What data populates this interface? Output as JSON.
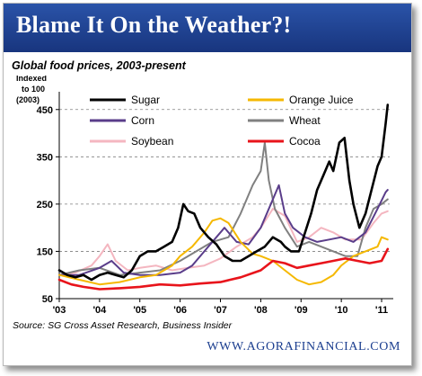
{
  "banner": {
    "title": "Blame It On the Weather?!"
  },
  "footer": {
    "source": "Source: SG Cross Asset Research, Business Insider",
    "site": "WWW.AGORAFINANCIAL.COM"
  },
  "colors": {
    "banner": "#1b3e8f",
    "site_text": "#1b3e8f"
  },
  "chart_data": {
    "type": "line",
    "title": "Global food prices, 2003-present",
    "ylabel": "Indexed to 100 (2003)",
    "ylabel_lines": [
      "Indexed",
      "to 100",
      "(2003)"
    ],
    "xlabel": "",
    "xlim": [
      2003.0,
      2011.2
    ],
    "ylim": [
      50,
      480
    ],
    "x_ticks": [
      2003,
      2004,
      2005,
      2006,
      2007,
      2008,
      2009,
      2010,
      2011
    ],
    "x_tick_labels": [
      "'03",
      "'04",
      "'05",
      "'06",
      "'07",
      "'08",
      "'09",
      "'10",
      "'11"
    ],
    "y_ticks": [
      50,
      150,
      250,
      350,
      450
    ],
    "y_gridlines": [
      150,
      250,
      350,
      450
    ],
    "grid": "dashed horizontal",
    "legend": "top, two columns",
    "series": [
      {
        "name": "Sugar",
        "color": "#000000",
        "width": 2.6,
        "x": [
          2003.0,
          2003.2,
          2003.4,
          2003.6,
          2003.8,
          2004.0,
          2004.2,
          2004.4,
          2004.6,
          2004.8,
          2005.0,
          2005.2,
          2005.4,
          2005.6,
          2005.8,
          2005.95,
          2006.08,
          2006.2,
          2006.35,
          2006.5,
          2006.7,
          2006.9,
          2007.1,
          2007.3,
          2007.5,
          2007.7,
          2007.9,
          2008.1,
          2008.3,
          2008.5,
          2008.6,
          2008.75,
          2008.95,
          2009.1,
          2009.25,
          2009.4,
          2009.55,
          2009.7,
          2009.8,
          2009.95,
          2010.08,
          2010.2,
          2010.3,
          2010.45,
          2010.6,
          2010.75,
          2010.9,
          2011.0,
          2011.1,
          2011.15
        ],
        "y": [
          110,
          100,
          95,
          100,
          90,
          100,
          105,
          100,
          95,
          110,
          140,
          150,
          150,
          160,
          170,
          200,
          250,
          235,
          230,
          200,
          180,
          165,
          140,
          130,
          130,
          140,
          150,
          160,
          180,
          170,
          160,
          150,
          150,
          190,
          230,
          280,
          310,
          340,
          320,
          380,
          390,
          300,
          250,
          200,
          230,
          280,
          330,
          350,
          420,
          460
        ]
      },
      {
        "name": "Orange Juice",
        "color": "#f5b800",
        "width": 2,
        "x": [
          2003.0,
          2003.5,
          2004.0,
          2004.5,
          2005.0,
          2005.4,
          2005.8,
          2006.0,
          2006.3,
          2006.6,
          2006.8,
          2007.0,
          2007.2,
          2007.5,
          2007.8,
          2008.0,
          2008.3,
          2008.6,
          2008.9,
          2009.2,
          2009.5,
          2009.8,
          2010.0,
          2010.3,
          2010.6,
          2010.9,
          2011.0,
          2011.15
        ],
        "y": [
          100,
          90,
          80,
          85,
          95,
          100,
          120,
          140,
          160,
          190,
          215,
          220,
          210,
          170,
          145,
          140,
          130,
          110,
          90,
          80,
          85,
          100,
          120,
          140,
          150,
          160,
          180,
          175
        ]
      },
      {
        "name": "Corn",
        "color": "#5a3d8a",
        "width": 2,
        "x": [
          2003.0,
          2003.5,
          2004.0,
          2004.3,
          2004.6,
          2005.0,
          2005.5,
          2006.0,
          2006.3,
          2006.6,
          2006.9,
          2007.1,
          2007.4,
          2007.7,
          2008.0,
          2008.3,
          2008.45,
          2008.6,
          2008.8,
          2009.1,
          2009.4,
          2009.7,
          2010.0,
          2010.3,
          2010.6,
          2010.9,
          2011.1,
          2011.15
        ],
        "y": [
          100,
          100,
          115,
          130,
          105,
          100,
          100,
          105,
          120,
          150,
          180,
          200,
          170,
          165,
          200,
          260,
          290,
          230,
          200,
          180,
          170,
          175,
          180,
          170,
          190,
          240,
          275,
          280
        ]
      },
      {
        "name": "Wheat",
        "color": "#808080",
        "width": 2,
        "x": [
          2003.0,
          2003.5,
          2004.0,
          2004.5,
          2005.0,
          2005.5,
          2006.0,
          2006.4,
          2006.8,
          2007.2,
          2007.5,
          2007.8,
          2008.0,
          2008.1,
          2008.2,
          2008.35,
          2008.6,
          2008.9,
          2009.2,
          2009.5,
          2009.8,
          2010.1,
          2010.4,
          2010.6,
          2010.8,
          2011.0,
          2011.15
        ],
        "y": [
          100,
          110,
          115,
          100,
          105,
          110,
          130,
          150,
          170,
          180,
          230,
          290,
          320,
          380,
          300,
          240,
          200,
          160,
          170,
          160,
          150,
          140,
          140,
          200,
          240,
          250,
          260
        ]
      },
      {
        "name": "Soybean",
        "color": "#f4b6c0",
        "width": 2,
        "x": [
          2003.0,
          2003.4,
          2003.8,
          2004.0,
          2004.2,
          2004.4,
          2004.7,
          2005.0,
          2005.4,
          2005.8,
          2006.2,
          2006.6,
          2007.0,
          2007.4,
          2007.8,
          2008.0,
          2008.3,
          2008.6,
          2008.9,
          2009.2,
          2009.5,
          2009.8,
          2010.1,
          2010.5,
          2010.8,
          2011.0,
          2011.15
        ],
        "y": [
          100,
          105,
          120,
          140,
          165,
          130,
          110,
          115,
          120,
          110,
          115,
          120,
          135,
          160,
          180,
          200,
          240,
          225,
          170,
          180,
          200,
          190,
          175,
          175,
          210,
          230,
          235
        ]
      },
      {
        "name": "Cocoa",
        "color": "#e8141b",
        "width": 2.6,
        "x": [
          2003.0,
          2003.3,
          2003.6,
          2004.0,
          2004.5,
          2005.0,
          2005.5,
          2006.0,
          2006.5,
          2007.0,
          2007.5,
          2008.0,
          2008.3,
          2008.6,
          2008.9,
          2009.2,
          2009.5,
          2009.8,
          2010.1,
          2010.4,
          2010.7,
          2011.0,
          2011.15
        ],
        "y": [
          90,
          80,
          75,
          70,
          72,
          75,
          80,
          78,
          82,
          85,
          95,
          110,
          130,
          125,
          115,
          120,
          125,
          130,
          135,
          130,
          125,
          130,
          155
        ]
      }
    ]
  }
}
